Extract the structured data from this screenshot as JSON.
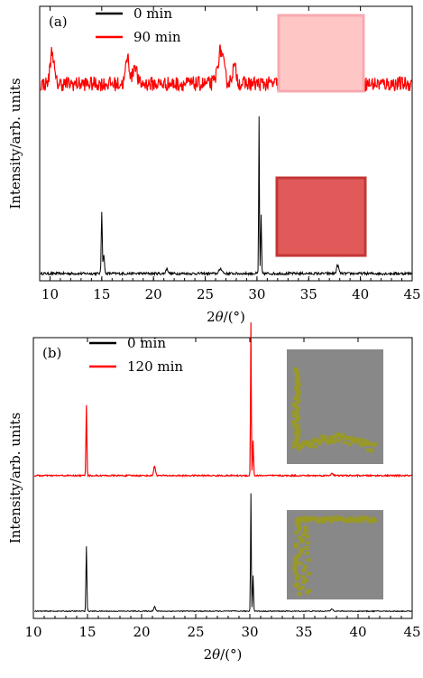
{
  "chart_data": [
    {
      "panel": "(a)",
      "type": "line",
      "xlabel_prefix": "2",
      "xlabel_symbol": "θ",
      "xlabel_suffix": "/(°)",
      "ylabel": "Intensity/arb. units",
      "xlim": [
        9,
        45
      ],
      "xticks": [
        "10",
        "15",
        "20",
        "25",
        "30",
        "35",
        "40",
        "45"
      ],
      "legend_position": "top-left",
      "series": [
        {
          "name": "0 min",
          "color": "#000000",
          "baseline": 0,
          "noise": 0.008,
          "peaks": [
            [
              15.0,
              0.38,
              0.07
            ],
            [
              15.2,
              0.12,
              0.08
            ],
            [
              21.3,
              0.03,
              0.15
            ],
            [
              26.5,
              0.03,
              0.2
            ],
            [
              30.2,
              0.95,
              0.05
            ],
            [
              30.4,
              0.35,
              0.06
            ],
            [
              37.8,
              0.05,
              0.15
            ]
          ]
        },
        {
          "name": "90 min",
          "color": "#ff0000",
          "baseline": 1.15,
          "noise": 0.045,
          "peaks": [
            [
              10.2,
              0.2,
              0.25
            ],
            [
              17.5,
              0.16,
              0.25
            ],
            [
              18.2,
              0.12,
              0.25
            ],
            [
              26.5,
              0.2,
              0.4
            ],
            [
              27.8,
              0.1,
              0.3
            ],
            [
              33.8,
              0.06,
              0.3
            ],
            [
              35.0,
              0.08,
              0.3
            ],
            [
              37.8,
              0.14,
              0.3
            ]
          ]
        }
      ],
      "insets": [
        {
          "series": "90 min",
          "type": "color-swatch",
          "color": "#ffc6c6",
          "accent": "#f7a9b0"
        },
        {
          "series": "0 min",
          "type": "color-swatch",
          "color": "#e15a5a",
          "accent": "#c43636"
        }
      ]
    },
    {
      "panel": "(b)",
      "type": "line",
      "xlabel_prefix": "2",
      "xlabel_symbol": "θ",
      "xlabel_suffix": "/(°)",
      "ylabel": "Intensity/arb. units",
      "xlim": [
        10,
        45
      ],
      "xticks": [
        "10",
        "15",
        "20",
        "25",
        "30",
        "35",
        "40",
        "45"
      ],
      "legend_position": "top-left",
      "series": [
        {
          "name": "0 min",
          "color": "#000000",
          "baseline": 0,
          "noise": 0.004,
          "peaks": [
            [
              14.9,
              0.55,
              0.06
            ],
            [
              21.2,
              0.04,
              0.12
            ],
            [
              30.1,
              1.0,
              0.05
            ],
            [
              30.3,
              0.3,
              0.06
            ],
            [
              37.6,
              0.02,
              0.15
            ]
          ]
        },
        {
          "name": "120 min",
          "color": "#ff0000",
          "baseline": 1.15,
          "noise": 0.006,
          "peaks": [
            [
              14.9,
              0.6,
              0.06
            ],
            [
              21.2,
              0.08,
              0.12
            ],
            [
              30.1,
              1.3,
              0.05
            ],
            [
              30.3,
              0.3,
              0.06
            ],
            [
              37.6,
              0.02,
              0.15
            ]
          ]
        }
      ],
      "insets": [
        {
          "series": "120 min",
          "type": "color-swatch",
          "color": "#888888",
          "accent": "#9a9a22"
        },
        {
          "series": "0 min",
          "type": "color-swatch",
          "color": "#888888",
          "accent": "#9a9a22"
        }
      ]
    }
  ]
}
